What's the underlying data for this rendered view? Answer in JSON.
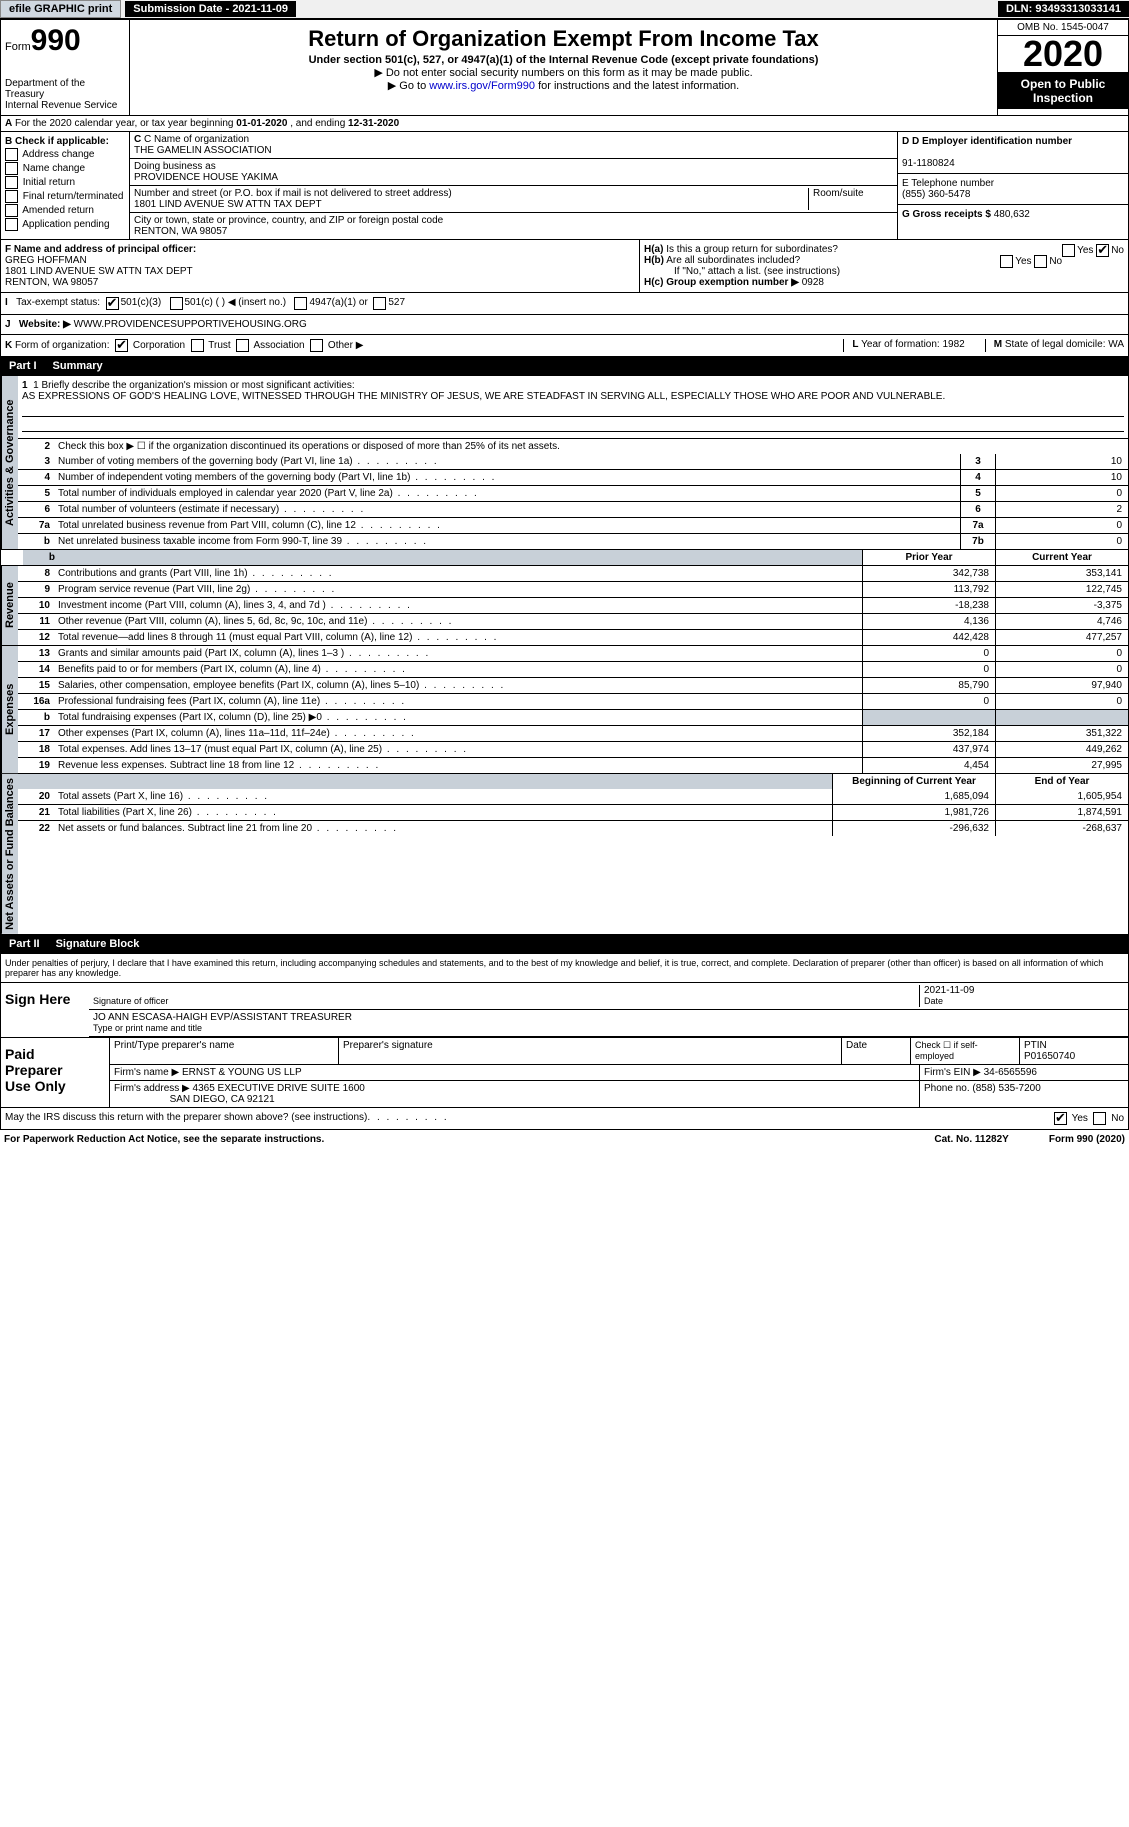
{
  "topbar": {
    "efile": "efile GRAPHIC print",
    "submission_label": "Submission Date - 2021-11-09",
    "dln": "DLN: 93493313033141"
  },
  "header": {
    "form_label": "Form",
    "form_number": "990",
    "dept": "Department of the Treasury\nInternal Revenue Service",
    "title": "Return of Organization Exempt From Income Tax",
    "subtitle": "Under section 501(c), 527, or 4947(a)(1) of the Internal Revenue Code (except private foundations)",
    "warn": "▶ Do not enter social security numbers on this form as it may be made public.",
    "goto": "▶ Go to www.irs.gov/Form990 for instructions and the latest information.",
    "goto_link": "www.irs.gov/Form990",
    "omb": "OMB No. 1545-0047",
    "year": "2020",
    "open": "Open to Public Inspection"
  },
  "rowA": "A For the 2020 calendar year, or tax year beginning 01-01-2020   , and ending 12-31-2020",
  "colB": {
    "header": "B Check if applicable:",
    "items": [
      "Address change",
      "Name change",
      "Initial return",
      "Final return/terminated",
      "Amended return",
      "Application pending"
    ]
  },
  "colC": {
    "name_label": "C Name of organization",
    "name": "THE GAMELIN ASSOCIATION",
    "dba_label": "Doing business as",
    "dba": "PROVIDENCE HOUSE YAKIMA",
    "street_label": "Number and street (or P.O. box if mail is not delivered to street address)",
    "street": "1801 LIND AVENUE SW ATTN TAX DEPT",
    "room_label": "Room/suite",
    "city_label": "City or town, state or province, country, and ZIP or foreign postal code",
    "city": "RENTON, WA  98057"
  },
  "colD": {
    "ein_label": "D Employer identification number",
    "ein": "91-1180824",
    "phone_label": "E Telephone number",
    "phone": "(855) 360-5478",
    "gross_label": "G Gross receipts $",
    "gross": "480,632"
  },
  "colF": {
    "label": "F Name and address of principal officer:",
    "name": "GREG HOFFMAN",
    "addr1": "1801 LIND AVENUE SW ATTN TAX DEPT",
    "addr2": "RENTON, WA  98057"
  },
  "colH": {
    "ha": "H(a)  Is this a group return for subordinates?",
    "hb": "H(b)  Are all subordinates included?",
    "hb_note": "If \"No,\" attach a list. (see instructions)",
    "hc": "H(c)  Group exemption number ▶",
    "hc_val": "0928"
  },
  "rowI": {
    "label": "I   Tax-exempt status:",
    "opt1": "501(c)(3)",
    "opt2": "501(c) (  ) ◀ (insert no.)",
    "opt3": "4947(a)(1) or",
    "opt4": "527"
  },
  "rowJ": {
    "label": "J   Website: ▶",
    "url": "WWW.PROVIDENCESUPPORTIVEHOUSING.ORG"
  },
  "rowK": {
    "label": "K Form of organization:",
    "opts": [
      "Corporation",
      "Trust",
      "Association",
      "Other ▶"
    ],
    "year_label": "L Year of formation:",
    "year": "1982",
    "state_label": "M State of legal domicile:",
    "state": "WA"
  },
  "partI": {
    "header": "Part I",
    "title": "Summary",
    "mission_label": "1  Briefly describe the organization's mission or most significant activities:",
    "mission": "AS EXPRESSIONS OF GOD'S HEALING LOVE, WITNESSED THROUGH THE MINISTRY OF JESUS, WE ARE STEADFAST IN SERVING ALL, ESPECIALLY THOSE WHO ARE POOR AND VULNERABLE.",
    "line2": "Check this box ▶ ☐  if the organization discontinued its operations or disposed of more than 25% of its net assets.",
    "vtabs": {
      "gov": "Activities & Governance",
      "rev": "Revenue",
      "exp": "Expenses",
      "net": "Net Assets or Fund Balances"
    },
    "gov_rows": [
      {
        "n": "3",
        "label": "Number of voting members of the governing body (Part VI, line 1a)",
        "box": "3",
        "val": "10"
      },
      {
        "n": "4",
        "label": "Number of independent voting members of the governing body (Part VI, line 1b)",
        "box": "4",
        "val": "10"
      },
      {
        "n": "5",
        "label": "Total number of individuals employed in calendar year 2020 (Part V, line 2a)",
        "box": "5",
        "val": "0"
      },
      {
        "n": "6",
        "label": "Total number of volunteers (estimate if necessary)",
        "box": "6",
        "val": "2"
      },
      {
        "n": "7a",
        "label": "Total unrelated business revenue from Part VIII, column (C), line 12",
        "box": "7a",
        "val": "0"
      },
      {
        "n": "b",
        "label": "Net unrelated business taxable income from Form 990-T, line 39",
        "box": "7b",
        "val": "0"
      }
    ],
    "col_headers": {
      "prior": "Prior Year",
      "current": "Current Year"
    },
    "rev_rows": [
      {
        "n": "8",
        "label": "Contributions and grants (Part VIII, line 1h)",
        "prior": "342,738",
        "current": "353,141"
      },
      {
        "n": "9",
        "label": "Program service revenue (Part VIII, line 2g)",
        "prior": "113,792",
        "current": "122,745"
      },
      {
        "n": "10",
        "label": "Investment income (Part VIII, column (A), lines 3, 4, and 7d )",
        "prior": "-18,238",
        "current": "-3,375"
      },
      {
        "n": "11",
        "label": "Other revenue (Part VIII, column (A), lines 5, 6d, 8c, 9c, 10c, and 11e)",
        "prior": "4,136",
        "current": "4,746"
      },
      {
        "n": "12",
        "label": "Total revenue—add lines 8 through 11 (must equal Part VIII, column (A), line 12)",
        "prior": "442,428",
        "current": "477,257"
      }
    ],
    "exp_rows": [
      {
        "n": "13",
        "label": "Grants and similar amounts paid (Part IX, column (A), lines 1–3 )",
        "prior": "0",
        "current": "0"
      },
      {
        "n": "14",
        "label": "Benefits paid to or for members (Part IX, column (A), line 4)",
        "prior": "0",
        "current": "0"
      },
      {
        "n": "15",
        "label": "Salaries, other compensation, employee benefits (Part IX, column (A), lines 5–10)",
        "prior": "85,790",
        "current": "97,940"
      },
      {
        "n": "16a",
        "label": "Professional fundraising fees (Part IX, column (A), line 11e)",
        "prior": "0",
        "current": "0"
      },
      {
        "n": "b",
        "label": "Total fundraising expenses (Part IX, column (D), line 25) ▶0",
        "prior": "",
        "current": "",
        "shaded": true
      },
      {
        "n": "17",
        "label": "Other expenses (Part IX, column (A), lines 11a–11d, 11f–24e)",
        "prior": "352,184",
        "current": "351,322"
      },
      {
        "n": "18",
        "label": "Total expenses. Add lines 13–17 (must equal Part IX, column (A), line 25)",
        "prior": "437,974",
        "current": "449,262"
      },
      {
        "n": "19",
        "label": "Revenue less expenses. Subtract line 18 from line 12",
        "prior": "4,454",
        "current": "27,995"
      }
    ],
    "net_headers": {
      "begin": "Beginning of Current Year",
      "end": "End of Year"
    },
    "net_rows": [
      {
        "n": "20",
        "label": "Total assets (Part X, line 16)",
        "prior": "1,685,094",
        "current": "1,605,954"
      },
      {
        "n": "21",
        "label": "Total liabilities (Part X, line 26)",
        "prior": "1,981,726",
        "current": "1,874,591"
      },
      {
        "n": "22",
        "label": "Net assets or fund balances. Subtract line 21 from line 20",
        "prior": "-296,632",
        "current": "-268,637"
      }
    ]
  },
  "partII": {
    "header": "Part II",
    "title": "Signature Block",
    "declare": "Under penalties of perjury, I declare that I have examined this return, including accompanying schedules and statements, and to the best of my knowledge and belief, it is true, correct, and complete. Declaration of preparer (other than officer) is based on all information of which preparer has any knowledge.",
    "sign_here": "Sign Here",
    "sig_officer": "Signature of officer",
    "sig_date": "2021-11-09",
    "date_label": "Date",
    "officer_name": "JO ANN ESCASA-HAIGH  EVP/ASSISTANT TREASURER",
    "type_name": "Type or print name and title"
  },
  "preparer": {
    "header": "Paid Preparer Use Only",
    "h_name": "Print/Type preparer's name",
    "h_sig": "Preparer's signature",
    "h_date": "Date",
    "h_check": "Check ☐ if self-employed",
    "h_ptin": "PTIN",
    "ptin": "P01650740",
    "firm_name_label": "Firm's name    ▶",
    "firm_name": "ERNST & YOUNG US LLP",
    "firm_ein_label": "Firm's EIN ▶",
    "firm_ein": "34-6565596",
    "firm_addr_label": "Firm's address ▶",
    "firm_addr": "4365 EXECUTIVE DRIVE SUITE 1600",
    "firm_city": "SAN DIEGO, CA  92121",
    "phone_label": "Phone no.",
    "phone": "(858) 535-7200"
  },
  "footer": {
    "discuss": "May the IRS discuss this return with the preparer shown above? (see instructions)",
    "paperwork": "For Paperwork Reduction Act Notice, see the separate instructions.",
    "cat": "Cat. No. 11282Y",
    "form": "Form 990 (2020)"
  }
}
